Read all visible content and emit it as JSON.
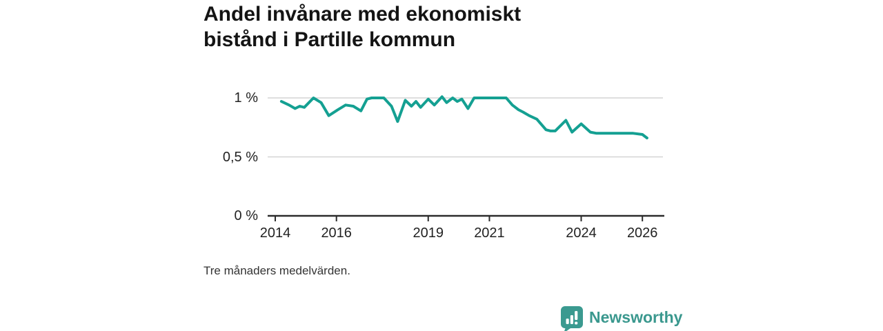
{
  "title_lines": [
    "Andel invånare med ekonomiskt",
    "bistånd i Partille kommun"
  ],
  "footnote": "Tre månaders medelvärden.",
  "branding": {
    "name": "Newsworthy",
    "icon": "newsworthy-speech-bubble-bar-chart-icon",
    "text_color": "#3a988e",
    "icon_color": "#3b9a90"
  },
  "colors": {
    "line": "#14a092",
    "grid": "#d4d4d4",
    "axis": "#2b2b2b",
    "tick_text": "#222222"
  },
  "chart_data": {
    "type": "line",
    "title": "Andel invånare med ekonomiskt bistånd i Partille kommun",
    "xlabel": "",
    "ylabel": "",
    "unit": "percent of residents",
    "note": "Tre månaders medelvärden.",
    "grid": "horizontal-only",
    "legend": "none",
    "xlim": [
      2013.75,
      2026.7
    ],
    "ylim": [
      0,
      1.05
    ],
    "x_ticks": [
      2014,
      2016,
      2019,
      2021,
      2024,
      2026
    ],
    "x_tick_labels": [
      "2014",
      "2016",
      "2019",
      "2021",
      "2024",
      "2026"
    ],
    "y_ticks": [
      0,
      0.5,
      1
    ],
    "y_tick_labels": [
      "0 %",
      "0,5 %",
      "1 %"
    ],
    "series": [
      {
        "name": "Andel invånare med ekonomiskt bistånd",
        "points": [
          [
            2014.2,
            0.97
          ],
          [
            2014.45,
            0.94
          ],
          [
            2014.65,
            0.91
          ],
          [
            2014.8,
            0.93
          ],
          [
            2014.95,
            0.92
          ],
          [
            2015.25,
            1.0
          ],
          [
            2015.5,
            0.96
          ],
          [
            2015.75,
            0.85
          ],
          [
            2016.05,
            0.9
          ],
          [
            2016.3,
            0.94
          ],
          [
            2016.55,
            0.93
          ],
          [
            2016.8,
            0.89
          ],
          [
            2017.0,
            0.99
          ],
          [
            2017.15,
            1.0
          ],
          [
            2017.55,
            1.0
          ],
          [
            2017.8,
            0.93
          ],
          [
            2018.0,
            0.8
          ],
          [
            2018.25,
            0.98
          ],
          [
            2018.45,
            0.93
          ],
          [
            2018.6,
            0.97
          ],
          [
            2018.75,
            0.92
          ],
          [
            2019.0,
            0.99
          ],
          [
            2019.2,
            0.94
          ],
          [
            2019.45,
            1.01
          ],
          [
            2019.6,
            0.96
          ],
          [
            2019.8,
            1.0
          ],
          [
            2019.95,
            0.97
          ],
          [
            2020.1,
            0.99
          ],
          [
            2020.3,
            0.91
          ],
          [
            2020.5,
            1.0
          ],
          [
            2021.55,
            1.0
          ],
          [
            2021.75,
            0.94
          ],
          [
            2021.95,
            0.9
          ],
          [
            2022.1,
            0.88
          ],
          [
            2022.3,
            0.85
          ],
          [
            2022.55,
            0.82
          ],
          [
            2022.85,
            0.73
          ],
          [
            2023.0,
            0.72
          ],
          [
            2023.15,
            0.72
          ],
          [
            2023.5,
            0.81
          ],
          [
            2023.7,
            0.71
          ],
          [
            2024.0,
            0.78
          ],
          [
            2024.3,
            0.71
          ],
          [
            2024.5,
            0.7
          ],
          [
            2025.7,
            0.7
          ],
          [
            2026.0,
            0.69
          ],
          [
            2026.15,
            0.66
          ]
        ]
      }
    ]
  }
}
